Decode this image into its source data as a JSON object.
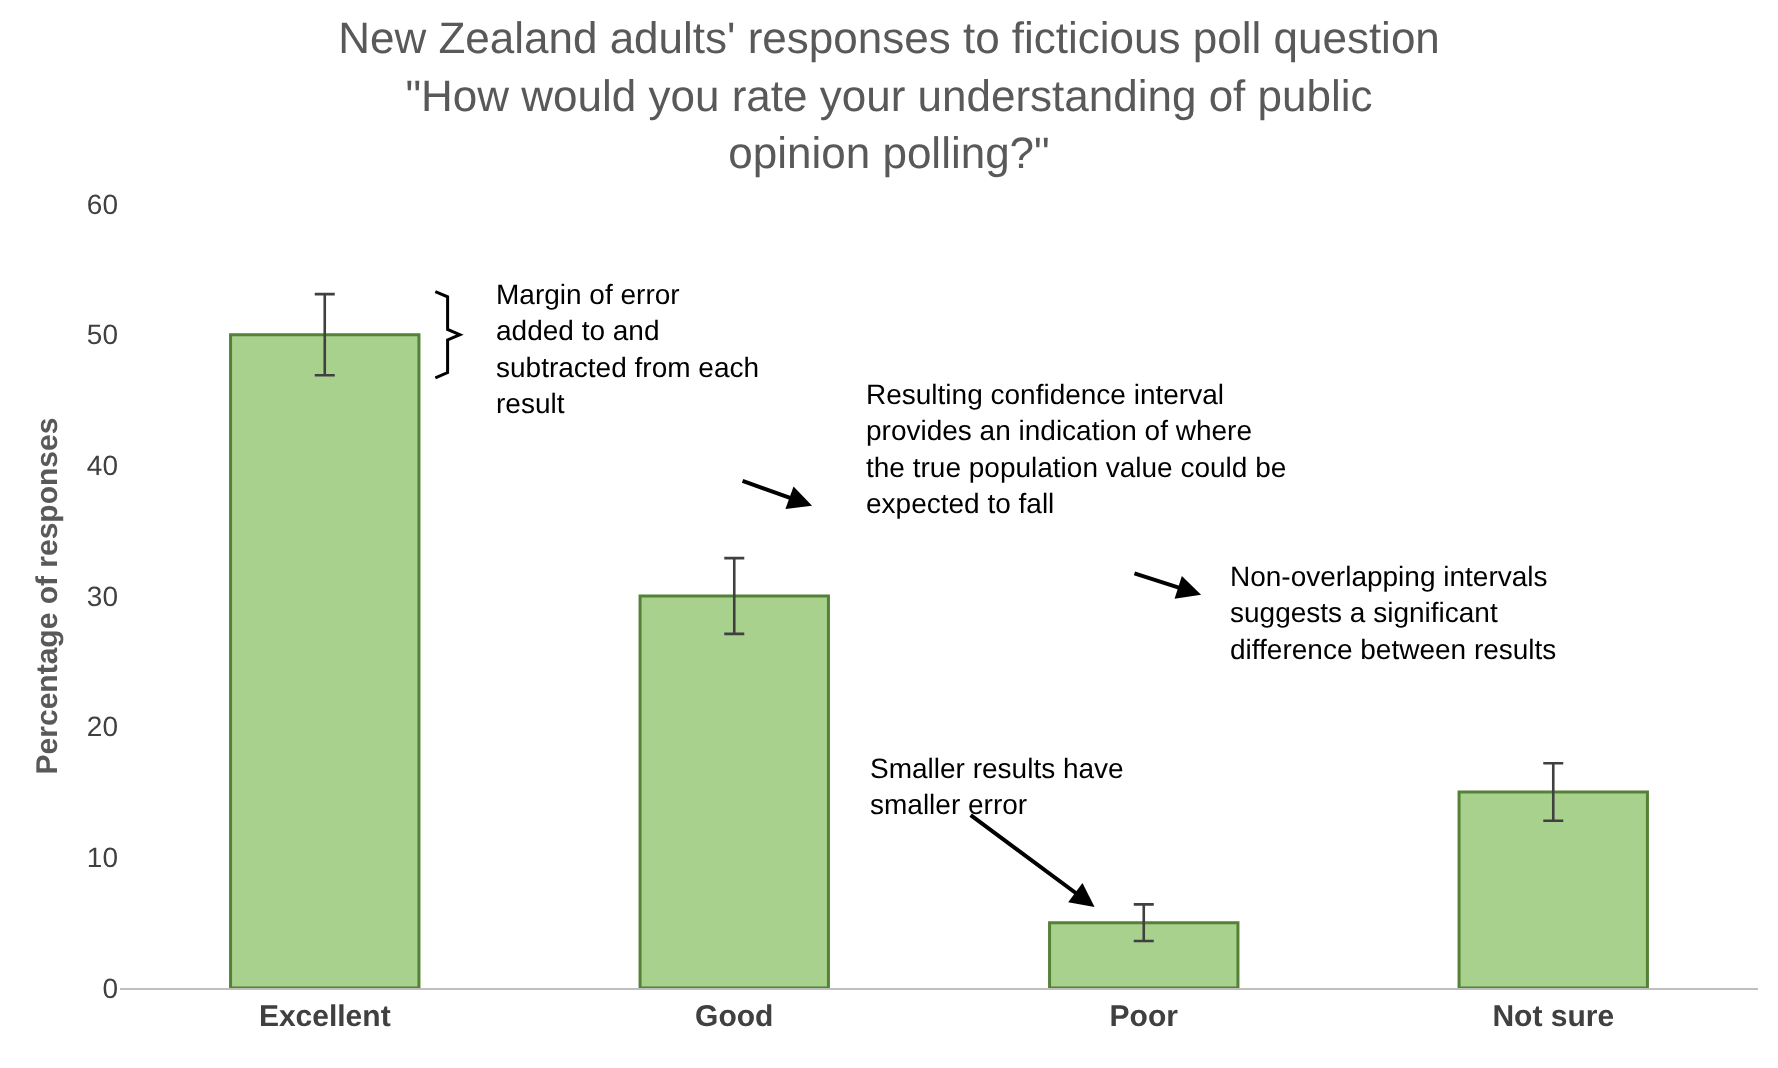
{
  "chart_data": {
    "type": "bar",
    "title": "New Zealand adults' responses to ficticious poll question \"How would you rate your understanding of public opinion polling?\"",
    "ylabel": "Percentage of responses",
    "categories": [
      "Excellent",
      "Good",
      "Poor",
      "Not sure"
    ],
    "values": [
      50,
      30,
      5,
      15
    ],
    "errors": [
      3.1,
      2.9,
      1.4,
      2.2
    ],
    "color": "#a9d18e",
    "ylim": [
      0,
      60
    ],
    "yticks": [
      0,
      10,
      20,
      30,
      40,
      50,
      60
    ],
    "grid": false,
    "annotations": [
      "Margin of error added to and subtracted from each result",
      "Resulting confidence interval provides an indication of where the true population value could be expected to fall",
      "Non-overlapping intervals suggests a significant difference between results",
      "Smaller results have smaller error"
    ]
  }
}
